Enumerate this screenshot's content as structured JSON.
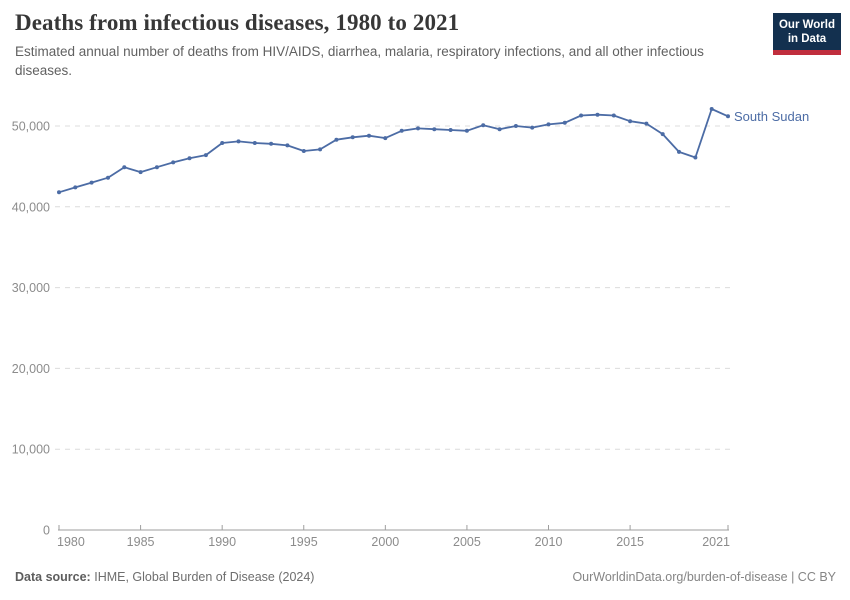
{
  "header": {
    "title": "Deaths from infectious diseases, 1980 to 2021",
    "subtitle": "Estimated annual number of deaths from HIV/AIDS, diarrhea, malaria, respiratory infections, and all other infectious diseases."
  },
  "logo": {
    "line1": "Our World",
    "line2": "in Data"
  },
  "footer": {
    "source_label": "Data source:",
    "source_value": "IHME, Global Burden of Disease (2024)",
    "credit": "OurWorldinData.org/burden-of-disease | CC BY"
  },
  "colors": {
    "series_line": "#4c6ca5",
    "logo_background": "#13304f",
    "logo_stripe": "#c02e3d",
    "grid": "#dcdcdc",
    "axis": "#9e9e9e",
    "tick_text": "#8c8c8c"
  },
  "chart_data": {
    "type": "line",
    "title": "Deaths from infectious diseases, 1980 to 2021",
    "xlabel": "",
    "ylabel": "",
    "grid": "horizontal-dashed",
    "legend": "series label at right end of line",
    "x": [
      1980,
      1981,
      1982,
      1983,
      1984,
      1985,
      1986,
      1987,
      1988,
      1989,
      1990,
      1991,
      1992,
      1993,
      1994,
      1995,
      1996,
      1997,
      1998,
      1999,
      2000,
      2001,
      2002,
      2003,
      2004,
      2005,
      2006,
      2007,
      2008,
      2009,
      2010,
      2011,
      2012,
      2013,
      2014,
      2015,
      2016,
      2017,
      2018,
      2019,
      2020,
      2021
    ],
    "series": [
      {
        "name": "South Sudan",
        "color": "#4c6ca5",
        "values": [
          41800,
          42400,
          43000,
          43600,
          44900,
          44300,
          44900,
          45500,
          46000,
          46400,
          47900,
          48100,
          47900,
          47800,
          47600,
          46900,
          47100,
          48300,
          48600,
          48800,
          48500,
          49400,
          49700,
          49600,
          49500,
          49400,
          50100,
          49600,
          50000,
          49800,
          50200,
          50400,
          51300,
          51400,
          51300,
          50600,
          50300,
          49000,
          46800,
          46100,
          52100,
          51200
        ]
      }
    ],
    "x_axis": {
      "range": [
        1980,
        2021
      ],
      "ticks": [
        {
          "value": 1980,
          "label": "1980"
        },
        {
          "value": 1985,
          "label": "1985"
        },
        {
          "value": 1990,
          "label": "1990"
        },
        {
          "value": 1995,
          "label": "1995"
        },
        {
          "value": 2000,
          "label": "2000"
        },
        {
          "value": 2005,
          "label": "2005"
        },
        {
          "value": 2010,
          "label": "2010"
        },
        {
          "value": 2015,
          "label": "2015"
        },
        {
          "value": 2021,
          "label": "2021"
        }
      ]
    },
    "y_axis": {
      "range": [
        0,
        50000
      ],
      "ticks": [
        {
          "value": 0,
          "label": "0"
        },
        {
          "value": 10000,
          "label": "10,000"
        },
        {
          "value": 20000,
          "label": "20,000"
        },
        {
          "value": 30000,
          "label": "30,000"
        },
        {
          "value": 40000,
          "label": "40,000"
        },
        {
          "value": 50000,
          "label": "50,000"
        }
      ]
    }
  }
}
